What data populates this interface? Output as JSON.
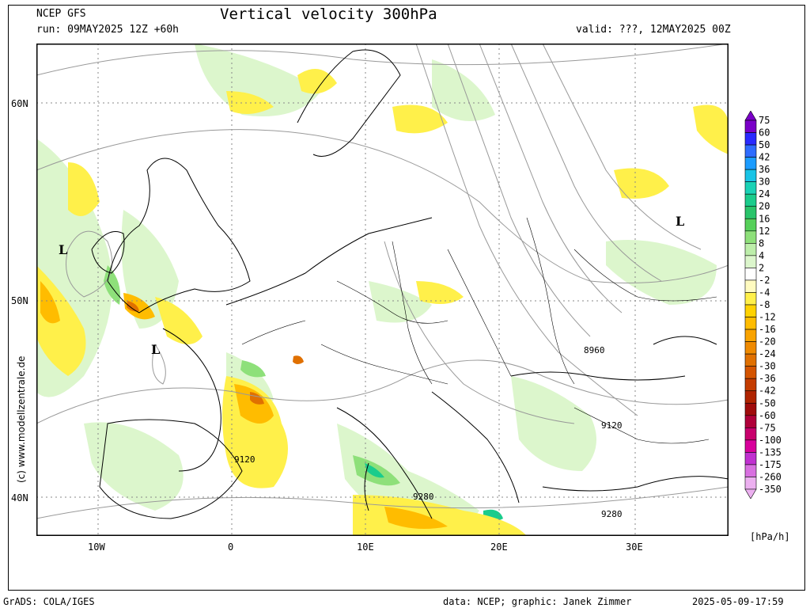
{
  "header": {
    "model": "NCEP GFS",
    "run": "run: 09MAY2025 12Z +60h",
    "title": "Vertical velocity 300hPa",
    "valid": "valid: ???, 12MAY2025 00Z"
  },
  "map": {
    "lat_labels": [
      "60N",
      "50N",
      "40N"
    ],
    "lon_labels": [
      "10W",
      "0",
      "10E",
      "20E",
      "30E"
    ],
    "lows": [
      "L",
      "L",
      "L"
    ],
    "contour_labels": [
      "8960",
      "9120",
      "9120",
      "9280",
      "9280"
    ]
  },
  "colorbar": {
    "levels": [
      "75",
      "60",
      "50",
      "42",
      "36",
      "30",
      "24",
      "20",
      "16",
      "12",
      "8",
      "4",
      "2",
      "-2",
      "-4",
      "-8",
      "-12",
      "-16",
      "-20",
      "-24",
      "-30",
      "-36",
      "-42",
      "-50",
      "-60",
      "-75",
      "-100",
      "-135",
      "-175",
      "-260",
      "-350"
    ],
    "colors": [
      "#7a00c8",
      "#2a2aff",
      "#2f6cff",
      "#1c9cff",
      "#18c4e6",
      "#1ad2b6",
      "#1acc8c",
      "#29c46a",
      "#56d05a",
      "#8ee07a",
      "#bdeeaa",
      "#dcf6cc",
      "#ffffff",
      "#fffbc0",
      "#fff04a",
      "#ffd200",
      "#ffbc00",
      "#f9a300",
      "#ef8a00",
      "#e07000",
      "#d45400",
      "#c43c00",
      "#b02400",
      "#a00c0c",
      "#b0003a",
      "#c8006c",
      "#d8009c",
      "#c030d0",
      "#d870e0",
      "#ecb0f0"
    ],
    "unit": "[hPa/h]"
  },
  "footer": {
    "left": "GrADS: COLA/IGES",
    "middle": "data: NCEP; graphic: Janek Zimmer",
    "right": "2025-05-09-17:59"
  },
  "watermark": "(c) www.modellzentrale.de"
}
